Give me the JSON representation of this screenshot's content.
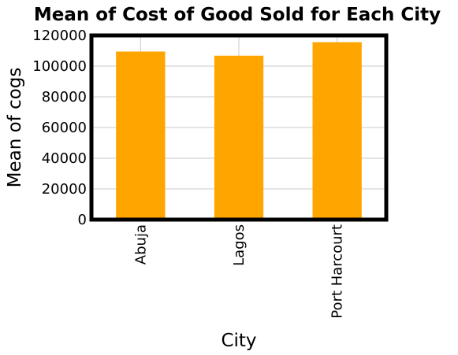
{
  "chart_data": {
    "type": "bar",
    "title": "Mean of Cost of Good Sold for Each City",
    "xlabel": "City",
    "ylabel": "Mean of cogs",
    "categories": [
      "Abuja",
      "Lagos",
      "Port Harcourt"
    ],
    "values": [
      109500,
      106800,
      115600
    ],
    "ylim": [
      0,
      120000
    ],
    "yticks": [
      "0",
      "20000",
      "40000",
      "60000",
      "80000",
      "100000",
      "120000"
    ],
    "grid": true,
    "bar_color": "#ffa500",
    "frame_color": "#000000",
    "grid_color": "#c8c8c8"
  }
}
